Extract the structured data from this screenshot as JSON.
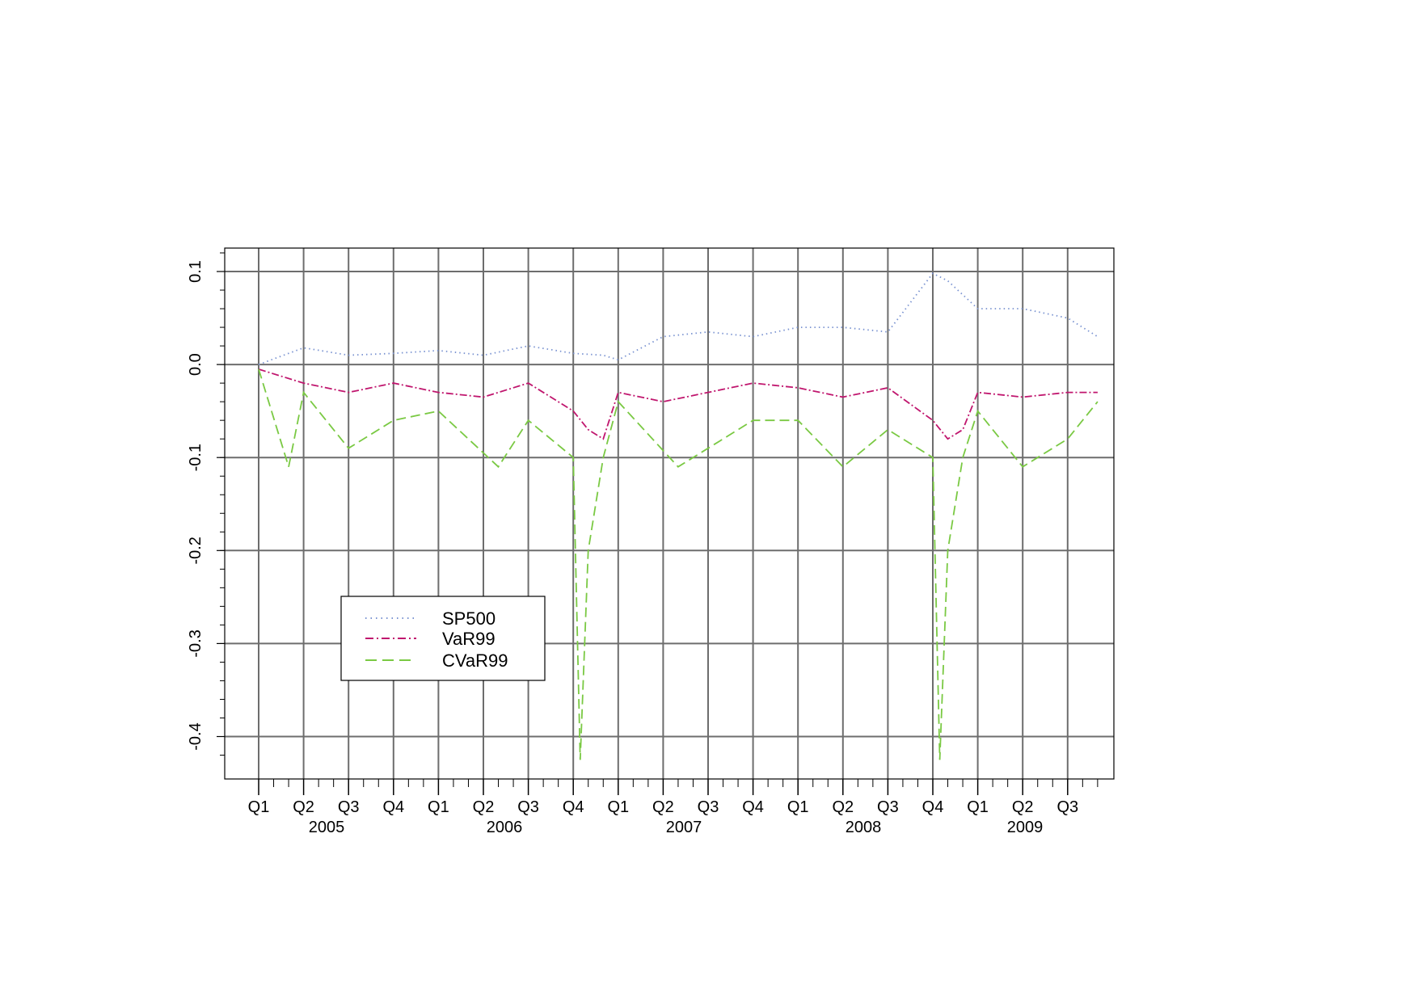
{
  "chart_data": {
    "type": "line",
    "title": "",
    "xlabel": "",
    "ylabel": "",
    "ylim": [
      -0.45,
      0.125
    ],
    "y_ticks": [
      "0.1",
      "0.0",
      "-0.1",
      "-0.2",
      "-0.3",
      "-0.4"
    ],
    "x_quarter_labels": [
      "Q1",
      "Q2",
      "Q3",
      "Q4",
      "Q1",
      "Q2",
      "Q3",
      "Q4",
      "Q1",
      "Q2",
      "Q3",
      "Q4",
      "Q1",
      "Q2",
      "Q3",
      "Q4",
      "Q1",
      "Q2",
      "Q3"
    ],
    "x_year_labels": [
      "2005",
      "2006",
      "2007",
      "2008",
      "2009"
    ],
    "grid": true,
    "legend_position": "bottom-left",
    "series": [
      {
        "name": "SP500",
        "style": "dotted",
        "color": "#7a93d1",
        "x": [
          "2005-01",
          "2005-04",
          "2005-07",
          "2005-10",
          "2006-01",
          "2006-04",
          "2006-07",
          "2006-10",
          "2006-12",
          "2007-01",
          "2007-04",
          "2007-07",
          "2007-10",
          "2008-01",
          "2008-04",
          "2008-07",
          "2008-10",
          "2008-11",
          "2009-01",
          "2009-04",
          "2009-07",
          "2009-09"
        ],
        "y": [
          0.0,
          0.018,
          0.01,
          0.012,
          0.015,
          0.01,
          0.02,
          0.012,
          0.01,
          0.005,
          0.03,
          0.035,
          0.03,
          0.04,
          0.04,
          0.035,
          0.098,
          0.09,
          0.06,
          0.06,
          0.05,
          0.03
        ]
      },
      {
        "name": "VaR99",
        "style": "dashdot",
        "color": "#c0166e",
        "x": [
          "2005-01",
          "2005-04",
          "2005-07",
          "2005-10",
          "2006-01",
          "2006-04",
          "2006-07",
          "2006-10",
          "2006-11",
          "2006-12",
          "2007-01",
          "2007-04",
          "2007-07",
          "2007-10",
          "2008-01",
          "2008-04",
          "2008-07",
          "2008-10",
          "2008-11",
          "2008-12",
          "2009-01",
          "2009-04",
          "2009-07",
          "2009-09"
        ],
        "y": [
          -0.005,
          -0.02,
          -0.03,
          -0.02,
          -0.03,
          -0.035,
          -0.02,
          -0.05,
          -0.07,
          -0.08,
          -0.03,
          -0.04,
          -0.03,
          -0.02,
          -0.025,
          -0.035,
          -0.025,
          -0.06,
          -0.08,
          -0.07,
          -0.03,
          -0.035,
          -0.03,
          -0.03
        ]
      },
      {
        "name": "CVaR99",
        "style": "dashed",
        "color": "#7ac943",
        "x": [
          "2005-01",
          "2005-03",
          "2005-04",
          "2005-07",
          "2005-10",
          "2006-01",
          "2006-05",
          "2006-07",
          "2006-10",
          "2006-10-15",
          "2006-11",
          "2006-12",
          "2007-01",
          "2007-05",
          "2007-07",
          "2007-10",
          "2008-01",
          "2008-04",
          "2008-07",
          "2008-10",
          "2008-10-15",
          "2008-11",
          "2008-12",
          "2009-01",
          "2009-04",
          "2009-07",
          "2009-09"
        ],
        "y": [
          -0.005,
          -0.11,
          -0.03,
          -0.09,
          -0.06,
          -0.05,
          -0.11,
          -0.06,
          -0.1,
          -0.425,
          -0.2,
          -0.1,
          -0.04,
          -0.11,
          -0.09,
          -0.06,
          -0.06,
          -0.11,
          -0.07,
          -0.1,
          -0.425,
          -0.2,
          -0.1,
          -0.05,
          -0.11,
          -0.08,
          -0.04
        ]
      }
    ]
  }
}
